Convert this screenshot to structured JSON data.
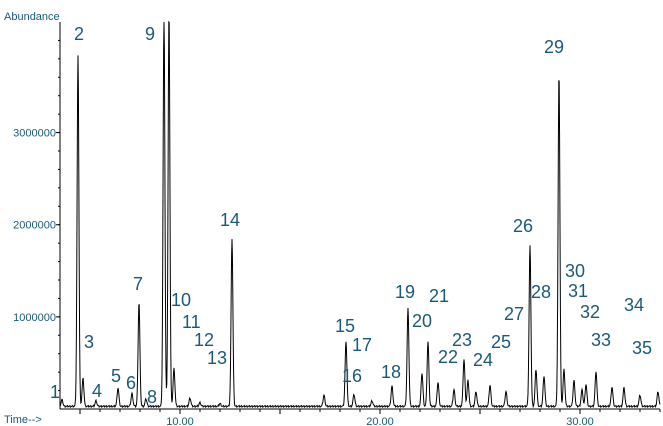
{
  "chart_data": {
    "type": "line",
    "ylabel": "Abundance",
    "xlabel": "Time-->",
    "xlim": [
      4.0,
      34.0
    ],
    "ylim": [
      0,
      4200000
    ],
    "x_ticks": [
      10,
      20,
      30
    ],
    "x_tick_labels": [
      "10.00",
      "20.00",
      "30.00"
    ],
    "y_ticks": [
      1000000,
      2000000,
      3000000
    ],
    "y_tick_labels": [
      "1000000",
      "2000000",
      "3000000"
    ],
    "baseline": 20000,
    "peaks": [
      {
        "label": "1",
        "rt": 4.1,
        "height": 90000
      },
      {
        "label": "2",
        "rt": 4.9,
        "height": 3820000
      },
      {
        "label": "3",
        "rt": 5.15,
        "height": 320000
      },
      {
        "label": "4",
        "rt": 5.8,
        "height": 80000
      },
      {
        "label": "5",
        "rt": 6.9,
        "height": 220000
      },
      {
        "label": "6",
        "rt": 7.6,
        "height": 160000
      },
      {
        "label": "7",
        "rt": 7.95,
        "height": 1150000
      },
      {
        "label": "8",
        "rt": 8.3,
        "height": 100000
      },
      {
        "label": "9",
        "rt": 9.2,
        "height": 4300000
      },
      {
        "label": "9",
        "rt": 9.45,
        "height": 4300000
      },
      {
        "label": "10",
        "rt": 9.7,
        "height": 430000
      },
      {
        "label": "11",
        "rt": 10.5,
        "height": 110000
      },
      {
        "label": "12",
        "rt": 11.0,
        "height": 60000
      },
      {
        "label": "13",
        "rt": 12.0,
        "height": 50000
      },
      {
        "label": "14",
        "rt": 12.6,
        "height": 1840000
      },
      {
        "label": "",
        "rt": 17.2,
        "height": 140000
      },
      {
        "label": "15",
        "rt": 18.3,
        "height": 730000
      },
      {
        "label": "16",
        "rt": 18.7,
        "height": 150000
      },
      {
        "label": "17",
        "rt": 19.6,
        "height": 80000
      },
      {
        "label": "18",
        "rt": 20.6,
        "height": 240000
      },
      {
        "label": "19",
        "rt": 21.4,
        "height": 1080000
      },
      {
        "label": "20",
        "rt": 22.1,
        "height": 380000
      },
      {
        "label": "21",
        "rt": 22.4,
        "height": 720000
      },
      {
        "label": "",
        "rt": 22.9,
        "height": 280000
      },
      {
        "label": "22",
        "rt": 23.7,
        "height": 200000
      },
      {
        "label": "23",
        "rt": 24.2,
        "height": 530000
      },
      {
        "label": "",
        "rt": 24.4,
        "height": 300000
      },
      {
        "label": "24",
        "rt": 24.8,
        "height": 180000
      },
      {
        "label": "25",
        "rt": 25.5,
        "height": 250000
      },
      {
        "label": "",
        "rt": 26.3,
        "height": 180000
      },
      {
        "label": "26",
        "rt": 27.5,
        "height": 1760000
      },
      {
        "label": "27",
        "rt": 27.8,
        "height": 420000
      },
      {
        "label": "28",
        "rt": 28.2,
        "height": 350000
      },
      {
        "label": "29",
        "rt": 28.95,
        "height": 3640000
      },
      {
        "label": "30",
        "rt": 29.2,
        "height": 420000
      },
      {
        "label": "31",
        "rt": 29.7,
        "height": 300000
      },
      {
        "label": "",
        "rt": 30.1,
        "height": 200000
      },
      {
        "label": "32",
        "rt": 30.3,
        "height": 260000
      },
      {
        "label": "33",
        "rt": 30.8,
        "height": 400000
      },
      {
        "label": "",
        "rt": 31.6,
        "height": 230000
      },
      {
        "label": "34",
        "rt": 32.2,
        "height": 220000
      },
      {
        "label": "",
        "rt": 33.0,
        "height": 140000
      },
      {
        "label": "35",
        "rt": 33.9,
        "height": 180000
      }
    ]
  }
}
